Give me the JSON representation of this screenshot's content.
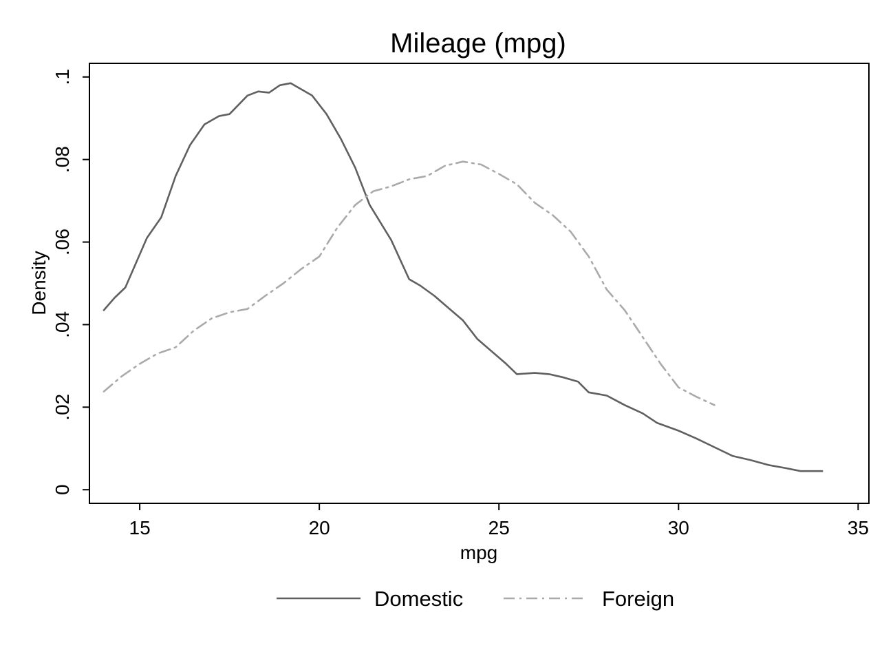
{
  "chart_data": {
    "type": "line",
    "title": "Mileage (mpg)",
    "xlabel": "mpg",
    "ylabel": "Density",
    "xlim": [
      13.6,
      35.3
    ],
    "ylim": [
      -0.0033,
      0.1033
    ],
    "xticks": [
      15,
      20,
      25,
      30,
      35
    ],
    "xtick_labels": [
      "15",
      "20",
      "25",
      "30",
      "35"
    ],
    "yticks": [
      0,
      0.02,
      0.04,
      0.06,
      0.08,
      0.1
    ],
    "ytick_labels": [
      "0",
      ".02",
      ".04",
      ".06",
      ".08",
      ".1"
    ],
    "grid": false,
    "legend_position": "bottom",
    "series": [
      {
        "name": "Domestic",
        "color": "#606060",
        "dash": "solid",
        "x": [
          14.0,
          14.3,
          14.6,
          15.0,
          15.2,
          15.6,
          16.0,
          16.4,
          16.8,
          17.2,
          17.5,
          18.0,
          18.3,
          18.6,
          18.9,
          19.2,
          19.5,
          19.8,
          20.2,
          20.6,
          21.0,
          21.4,
          22.0,
          22.5,
          22.8,
          23.2,
          23.6,
          24.0,
          24.4,
          24.8,
          25.2,
          25.5,
          26.0,
          26.4,
          26.8,
          27.2,
          27.5,
          28.0,
          28.5,
          29.0,
          29.4,
          30.0,
          30.5,
          31.0,
          31.5,
          32.0,
          32.5,
          33.0,
          33.4,
          34.0
        ],
        "values": [
          0.0435,
          0.0465,
          0.049,
          0.057,
          0.061,
          0.066,
          0.076,
          0.0835,
          0.0885,
          0.0905,
          0.091,
          0.0955,
          0.0965,
          0.0962,
          0.098,
          0.0985,
          0.097,
          0.0955,
          0.091,
          0.085,
          0.078,
          0.069,
          0.0605,
          0.051,
          0.0495,
          0.047,
          0.044,
          0.041,
          0.0365,
          0.0335,
          0.0305,
          0.028,
          0.0283,
          0.028,
          0.0272,
          0.0262,
          0.0236,
          0.0228,
          0.0205,
          0.0185,
          0.0162,
          0.0143,
          0.0124,
          0.0103,
          0.0082,
          0.0072,
          0.006,
          0.0052,
          0.0045,
          0.0045
        ]
      },
      {
        "name": "Foreign",
        "color": "#aaaaaa",
        "dash": "dash-dot",
        "x": [
          14.0,
          14.5,
          15.0,
          15.5,
          16.0,
          16.5,
          17.0,
          17.5,
          18.0,
          18.5,
          19.0,
          19.5,
          20.0,
          20.5,
          21.0,
          21.5,
          22.0,
          22.5,
          23.0,
          23.5,
          24.0,
          24.5,
          25.0,
          25.5,
          26.0,
          26.5,
          27.0,
          27.5,
          28.0,
          28.5,
          29.0,
          29.5,
          30.0,
          30.5,
          31.0
        ],
        "values": [
          0.0238,
          0.0275,
          0.0305,
          0.033,
          0.0345,
          0.0385,
          0.0415,
          0.043,
          0.0438,
          0.047,
          0.05,
          0.0535,
          0.0565,
          0.0635,
          0.069,
          0.0723,
          0.0735,
          0.0752,
          0.076,
          0.0785,
          0.0795,
          0.0788,
          0.0765,
          0.074,
          0.0695,
          0.0665,
          0.0625,
          0.0565,
          0.0485,
          0.0435,
          0.037,
          0.0305,
          0.0248,
          0.0225,
          0.0205
        ]
      }
    ]
  }
}
